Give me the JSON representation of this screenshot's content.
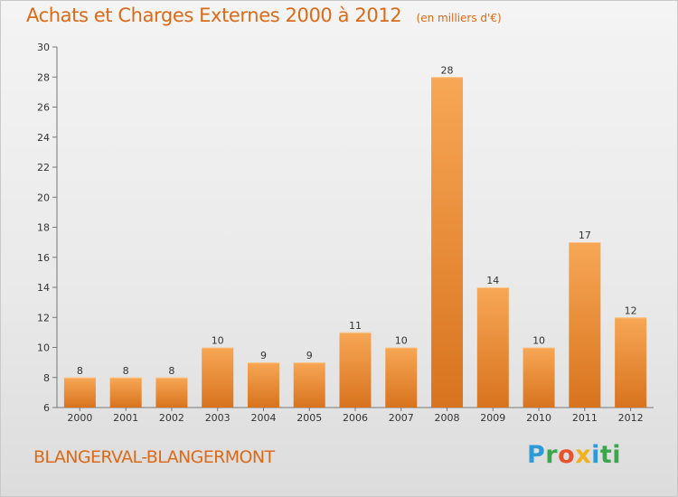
{
  "header": {
    "title": "Achats et Charges Externes 2000 à 2012",
    "unit": "(en milliers d'€)"
  },
  "footer": {
    "commune": "BLANGERVAL-BLANGERMONT",
    "logo_text": "Proxiti"
  },
  "colors": {
    "accent": "#dc6a17",
    "bar_light": "#f7a755",
    "bar_dark": "#d8731e"
  },
  "chart_data": {
    "type": "bar",
    "title": "Achats et Charges Externes 2000 à 2012",
    "subtitle": "(en milliers d'€)",
    "categories": [
      "2000",
      "2001",
      "2002",
      "2003",
      "2004",
      "2005",
      "2006",
      "2007",
      "2008",
      "2009",
      "2010",
      "2011",
      "2012"
    ],
    "values": [
      8,
      8,
      8,
      10,
      9,
      9,
      11,
      10,
      28,
      14,
      10,
      17,
      12
    ],
    "ylim": [
      6,
      30
    ],
    "yticks": [
      6,
      8,
      10,
      12,
      14,
      16,
      18,
      20,
      22,
      24,
      26,
      28,
      30
    ],
    "grid": false,
    "legend": "none"
  }
}
